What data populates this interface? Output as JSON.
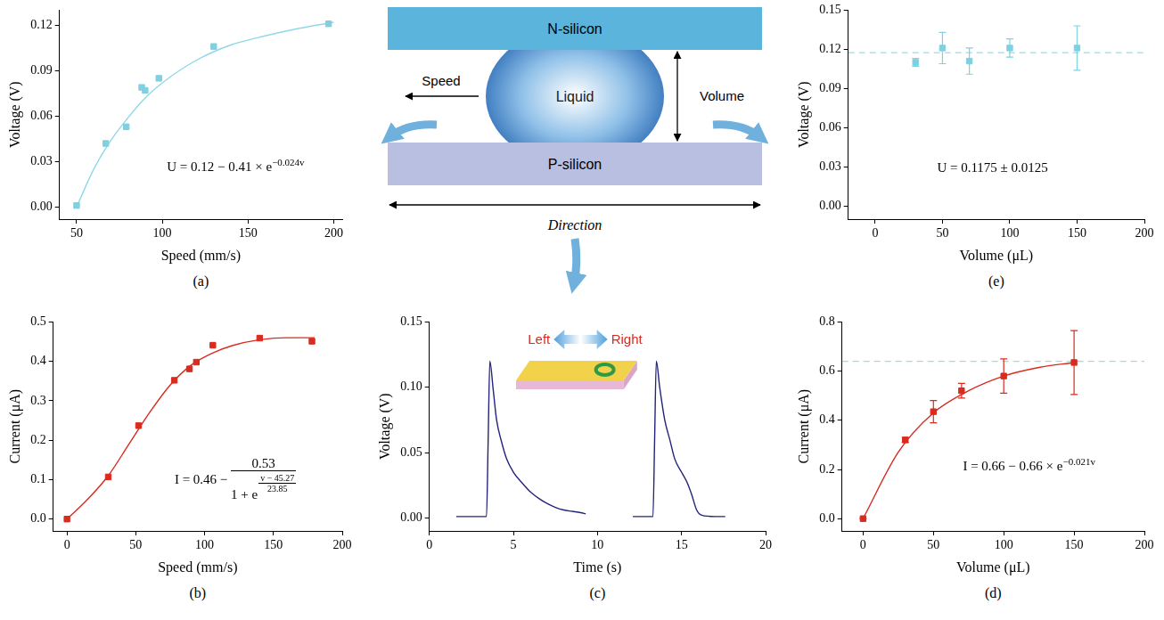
{
  "diagram": {
    "top_plate": "N-silicon",
    "droplet": "Liquid",
    "bottom_plate": "P-silicon",
    "left_arrow": "Speed",
    "right_arrow": "Volume",
    "bottom_arrow": "Direction"
  },
  "chart_data": [
    {
      "panel_label": "(a)",
      "type": "scatter",
      "x_label": "Speed (mm/s)",
      "y_label": "Voltage (V)",
      "xlim": [
        40,
        205
      ],
      "xticks": [
        50,
        100,
        150,
        200
      ],
      "ylim": [
        -0.008,
        0.13
      ],
      "yticks": [
        {
          "value": 0,
          "label": "0.00"
        },
        0.03,
        0.06,
        0.09,
        0.12
      ],
      "grid": false,
      "annotation": {
        "text": "U = 0.12 − 0.41 × e",
        "superscript": "−0.024v"
      },
      "series": [
        {
          "type": "scatter",
          "marker": "square",
          "color": "#7fd0e1",
          "x": [
            50,
            67,
            79,
            88,
            90,
            98,
            130,
            197
          ],
          "values": [
            0.001,
            0.042,
            0.053,
            0.079,
            0.077,
            0.085,
            0.106,
            0.121
          ]
        },
        {
          "type": "line",
          "line_style": "solid",
          "color": "#8fd8e8",
          "x": [
            50,
            60,
            70,
            80,
            90,
            100,
            120,
            140,
            160,
            180,
            200
          ],
          "values": [
            0.0,
            0.025,
            0.044,
            0.059,
            0.072,
            0.082,
            0.097,
            0.107,
            0.113,
            0.118,
            0.122
          ]
        }
      ]
    },
    {
      "panel_label": "(b)",
      "type": "scatter",
      "x_label": "Speed (mm/s)",
      "y_label": "Current (μA)",
      "xlim": [
        -10,
        200
      ],
      "xticks": [
        0,
        50,
        100,
        150,
        200
      ],
      "ylim": [
        -0.03,
        0.5
      ],
      "yticks": [
        {
          "value": 0,
          "label": "0.0"
        },
        0.1,
        0.2,
        0.3,
        0.4,
        0.5
      ],
      "grid": false,
      "annotation": {
        "text": "I = 0.46 −",
        "numerator": "0.53",
        "denominator": "1 + e",
        "superscript_numerator": "v − 45.27",
        "superscript_denominator": "23.85"
      },
      "series": [
        {
          "type": "scatter",
          "marker": "square",
          "color": "#d92b1f",
          "x": [
            0,
            30,
            52,
            78,
            89,
            94,
            106,
            140,
            178
          ],
          "values": [
            0,
            0.107,
            0.237,
            0.352,
            0.381,
            0.398,
            0.441,
            0.459,
            0.451
          ]
        },
        {
          "type": "line",
          "line_style": "solid",
          "color": "#d92b1f",
          "x": [
            0,
            15,
            30,
            45,
            60,
            75,
            90,
            105,
            120,
            140,
            160,
            180
          ],
          "values": [
            0.0,
            0.05,
            0.11,
            0.19,
            0.27,
            0.34,
            0.39,
            0.42,
            0.44,
            0.455,
            0.46,
            0.46
          ]
        }
      ]
    },
    {
      "panel_label": "(c)",
      "type": "line",
      "x_label": "Time (s)",
      "y_label": "Voltage (V)",
      "xlim": [
        0,
        20
      ],
      "xticks": [
        0,
        5,
        10,
        15,
        20
      ],
      "ylim": [
        -0.01,
        0.15
      ],
      "yticks": [
        {
          "value": 0,
          "label": "0.00"
        },
        0.05,
        {
          "value": 0.1,
          "label": "0.10"
        },
        0.15
      ],
      "grid": false,
      "inset": {
        "left_label": "Left",
        "right_label": "Right"
      },
      "series": [
        {
          "type": "line",
          "line_style": "solid",
          "color": "#23237a",
          "x": [
            1.6,
            2.5,
            3.4,
            3.5,
            3.6,
            3.8,
            4.0,
            4.3,
            4.6,
            5.0,
            5.5,
            6.0,
            6.5,
            7.0,
            7.5,
            8.0,
            8.5,
            9.0,
            9.3,
            10.5,
            12.1,
            13.0,
            13.3,
            13.4,
            13.5,
            13.7,
            14.0,
            14.3,
            14.6,
            15.0,
            15.3,
            15.6,
            15.9,
            16.2,
            17.0,
            17.6
          ],
          "values": [
            0.001,
            0.001,
            0.001,
            0.06,
            0.12,
            0.098,
            0.075,
            0.058,
            0.045,
            0.035,
            0.027,
            0.02,
            0.015,
            0.011,
            0.008,
            0.006,
            0.005,
            0.004,
            0.003,
            null,
            0.001,
            0.001,
            0.001,
            0.06,
            0.12,
            0.1,
            0.075,
            0.06,
            0.045,
            0.035,
            0.028,
            0.018,
            0.006,
            0.002,
            0.001,
            0.001
          ]
        }
      ]
    },
    {
      "panel_label": "(d)",
      "type": "scatter",
      "x_label": "Volume (μL)",
      "y_label": "Current (μA)",
      "xlim": [
        -15,
        200
      ],
      "xticks": [
        0,
        50,
        100,
        150,
        200
      ],
      "ylim": [
        -0.05,
        0.8
      ],
      "yticks": [
        {
          "value": 0,
          "label": "0.0"
        },
        0.2,
        0.4,
        0.6,
        0.8
      ],
      "grid": false,
      "annotation": {
        "text": "I = 0.66 − 0.66 × e",
        "superscript": "−0.021v"
      },
      "reference_line": {
        "value": 0.64,
        "color": "#9adbe8",
        "line_style": "dashed"
      },
      "series": [
        {
          "type": "scatter",
          "marker": "square",
          "color": "#d92b1f",
          "x": [
            0,
            30,
            50,
            70,
            100,
            150
          ],
          "values": [
            0,
            0.32,
            0.435,
            0.52,
            0.58,
            0.635
          ],
          "errors": [
            0,
            0.01,
            0.045,
            0.03,
            0.07,
            0.13
          ]
        },
        {
          "type": "line",
          "line_style": "solid",
          "color": "#d92b1f",
          "x": [
            0,
            25,
            50,
            75,
            100,
            125,
            150
          ],
          "values": [
            0,
            0.27,
            0.43,
            0.52,
            0.58,
            0.615,
            0.635
          ]
        }
      ]
    },
    {
      "panel_label": "(e)",
      "type": "scatter",
      "x_label": "Volume (μL)",
      "y_label": "Voltage (V)",
      "xlim": [
        -20,
        200
      ],
      "xticks": [
        0,
        50,
        100,
        150,
        200
      ],
      "ylim": [
        -0.01,
        0.15
      ],
      "yticks": [
        {
          "value": 0,
          "label": "0.00"
        },
        0.03,
        0.06,
        0.09,
        0.12,
        0.15
      ],
      "grid": false,
      "annotation": {
        "text": "U = 0.1175 ± 0.0125"
      },
      "reference_line": {
        "value": 0.1175,
        "color": "#9adbe8",
        "line_style": "dashed"
      },
      "series": [
        {
          "type": "scatter",
          "marker": "square",
          "color": "#7fd0e1",
          "x": [
            30,
            50,
            70,
            100,
            150
          ],
          "values": [
            0.11,
            0.121,
            0.111,
            0.121,
            0.121
          ],
          "errors": [
            0.003,
            0.012,
            0.01,
            0.007,
            0.017
          ]
        }
      ]
    }
  ]
}
